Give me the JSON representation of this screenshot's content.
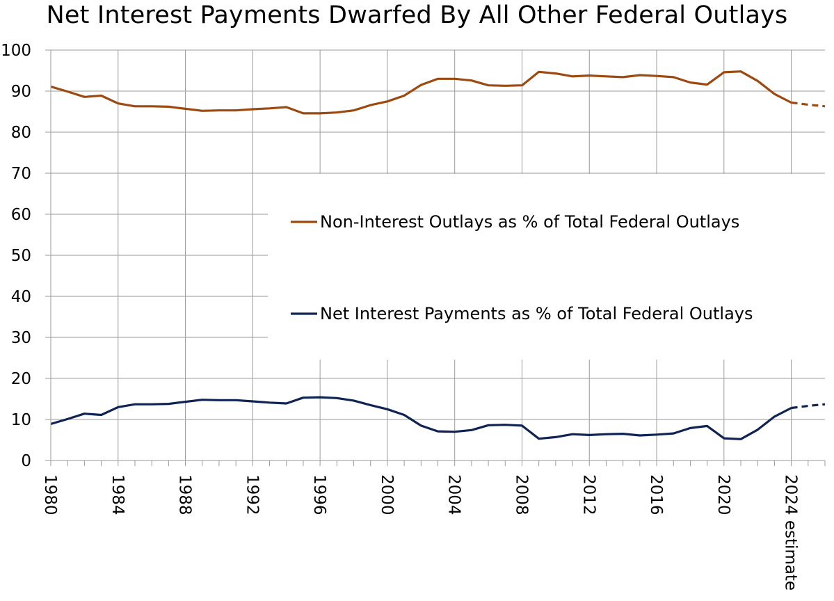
{
  "chart_data": {
    "type": "line",
    "title": "Net Interest Payments Dwarfed By All Other Federal Outlays",
    "xlabel": "",
    "ylabel": "",
    "ylim": [
      0,
      100
    ],
    "yticks": [
      0,
      10,
      20,
      30,
      40,
      50,
      60,
      70,
      80,
      90,
      100
    ],
    "xlim": [
      1980,
      2026
    ],
    "xticks": [
      {
        "value": 1980,
        "label": "1980"
      },
      {
        "value": 1984,
        "label": "1984"
      },
      {
        "value": 1988,
        "label": "1988"
      },
      {
        "value": 1992,
        "label": "1992"
      },
      {
        "value": 1996,
        "label": "1996"
      },
      {
        "value": 2000,
        "label": "2000"
      },
      {
        "value": 2004,
        "label": "2004"
      },
      {
        "value": 2008,
        "label": "2008"
      },
      {
        "value": 2012,
        "label": "2012"
      },
      {
        "value": 2016,
        "label": "2016"
      },
      {
        "value": 2020,
        "label": "2020"
      },
      {
        "value": 2024,
        "label": "2024 estimate"
      }
    ],
    "grid": true,
    "legend_position": "center-right",
    "estimate_start": 2024,
    "series": [
      {
        "name": "Non-Interest Outlays as % of Total Federal Outlays",
        "color": "#9c4a0f",
        "x": [
          1980,
          1981,
          1982,
          1983,
          1984,
          1985,
          1986,
          1987,
          1988,
          1989,
          1990,
          1991,
          1992,
          1993,
          1994,
          1995,
          1996,
          1997,
          1998,
          1999,
          2000,
          2001,
          2002,
          2003,
          2004,
          2005,
          2006,
          2007,
          2008,
          2009,
          2010,
          2011,
          2012,
          2013,
          2014,
          2015,
          2016,
          2017,
          2018,
          2019,
          2020,
          2021,
          2022,
          2023,
          2024,
          2025,
          2026
        ],
        "values": [
          91.1,
          89.9,
          88.6,
          88.9,
          87.0,
          86.3,
          86.3,
          86.2,
          85.7,
          85.2,
          85.3,
          85.3,
          85.6,
          85.8,
          86.1,
          84.6,
          84.6,
          84.8,
          85.3,
          86.6,
          87.5,
          88.9,
          91.5,
          93.0,
          93.0,
          92.6,
          91.4,
          91.3,
          91.4,
          94.7,
          94.3,
          93.6,
          93.8,
          93.6,
          93.4,
          93.9,
          93.7,
          93.4,
          92.1,
          91.6,
          94.6,
          94.8,
          92.5,
          89.3,
          87.2,
          86.7,
          86.3
        ]
      },
      {
        "name": "Net Interest Payments as % of Total Federal Outlays",
        "color": "#0f2354",
        "x": [
          1980,
          1981,
          1982,
          1983,
          1984,
          1985,
          1986,
          1987,
          1988,
          1989,
          1990,
          1991,
          1992,
          1993,
          1994,
          1995,
          1996,
          1997,
          1998,
          1999,
          2000,
          2001,
          2002,
          2003,
          2004,
          2005,
          2006,
          2007,
          2008,
          2009,
          2010,
          2011,
          2012,
          2013,
          2014,
          2015,
          2016,
          2017,
          2018,
          2019,
          2020,
          2021,
          2022,
          2023,
          2024,
          2025,
          2026
        ],
        "values": [
          8.9,
          10.1,
          11.4,
          11.1,
          13.0,
          13.7,
          13.7,
          13.8,
          14.3,
          14.8,
          14.7,
          14.7,
          14.4,
          14.1,
          13.9,
          15.3,
          15.4,
          15.2,
          14.6,
          13.5,
          12.5,
          11.1,
          8.5,
          7.1,
          7.0,
          7.4,
          8.6,
          8.7,
          8.5,
          5.3,
          5.7,
          6.4,
          6.2,
          6.4,
          6.5,
          6.1,
          6.3,
          6.6,
          7.9,
          8.4,
          5.4,
          5.2,
          7.5,
          10.7,
          12.8,
          13.3,
          13.7
        ]
      }
    ]
  }
}
